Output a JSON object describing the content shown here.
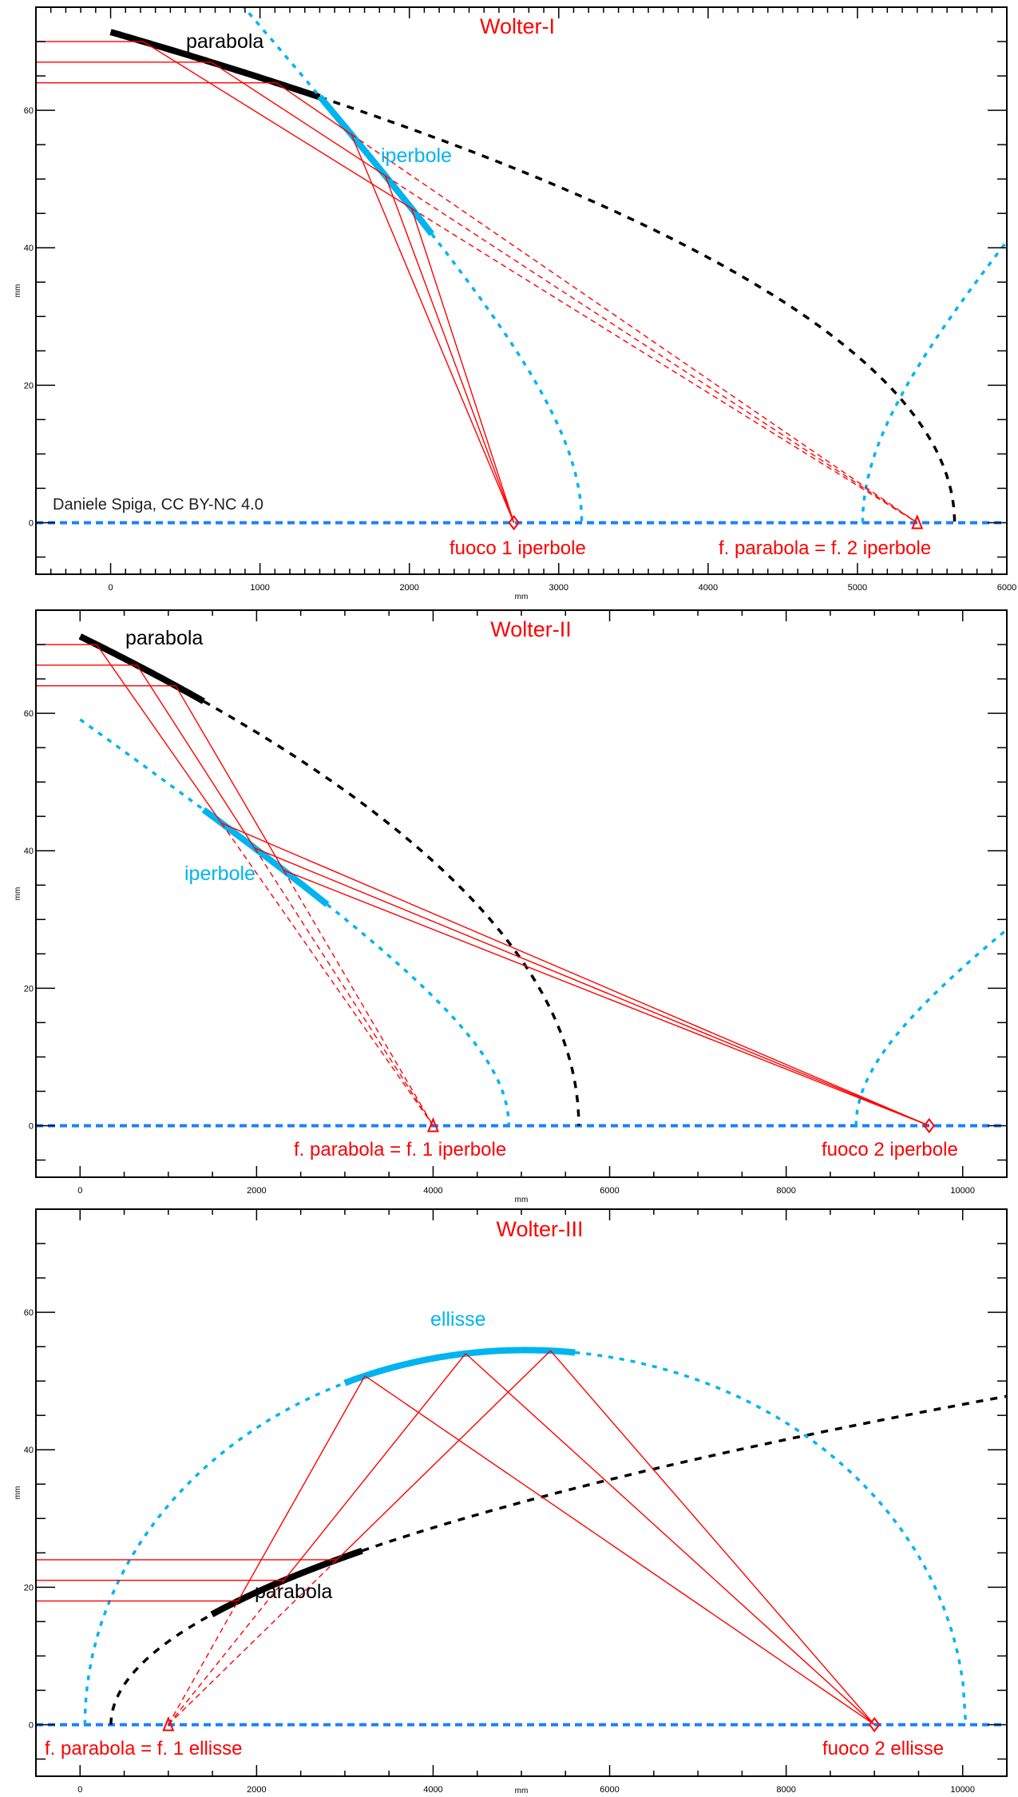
{
  "colors": {
    "ray": "#ff0000",
    "hyperbola_ellipse": "#00b4f0",
    "parabola": "#000000",
    "optical_axis": "#1a80ff",
    "label_red": "#ff0000"
  },
  "chart_data": [
    {
      "type": "diagram",
      "title": "Wolter-I",
      "xlabel": "mm",
      "ylabel": "mm",
      "xlim": [
        -500,
        6000
      ],
      "ylim": [
        -7.5,
        75
      ],
      "xticks": [
        0,
        1000,
        2000,
        3000,
        4000,
        5000,
        6000
      ],
      "xminor": 100,
      "yticks": [
        0,
        20,
        40,
        60
      ],
      "yminor": 5,
      "labels": {
        "parabola": "parabola",
        "iperbole": "iperbole",
        "focus_1": "fuoco 1 iperbole",
        "focus_2": "f. parabola = f. 2 iperbole",
        "credit": "Daniele Spiga, CC BY-NC 4.0"
      },
      "curves": [
        {
          "id": "parabola",
          "color": "parabola",
          "vertex": 5650,
          "dir": -1,
          "a": 0.902,
          "b": 0,
          "segments": [
            [
              0,
              1400,
              "thick"
            ],
            [
              1400,
              5650,
              "dashed"
            ]
          ]
        },
        {
          "id": "hyperbola-branch-1",
          "color": "hyperbola_ellipse",
          "vertex": 3154,
          "dir": -1,
          "a": 1.175,
          "b": 0.00058,
          "segments": [
            [
              -500,
              1400,
              "dashed"
            ],
            [
              1400,
              2150,
              "thick"
            ],
            [
              2150,
              3154,
              "dashed"
            ]
          ]
        },
        {
          "id": "hyperbola-branch-2",
          "color": "hyperbola_ellipse",
          "vertex": 5035,
          "dir": 1,
          "a": 1.175,
          "b": 0.00058,
          "segments": [
            [
              5035,
              6000,
              "dashed"
            ]
          ]
        }
      ],
      "rays": {
        "heights": [
          70,
          67,
          64
        ],
        "mode": "toward",
        "primary": 0,
        "secondary": 1,
        "focus_primary": 5400,
        "focus_final": 2700
      },
      "markers": [
        {
          "x": 2700,
          "shape": "diamond"
        },
        {
          "x": 5400,
          "shape": "triangle"
        }
      ]
    },
    {
      "type": "diagram",
      "title": "Wolter-II",
      "xlabel": "mm",
      "ylabel": "mm",
      "xlim": [
        -500,
        10500
      ],
      "ylim": [
        -7.5,
        75
      ],
      "xticks": [
        0,
        2000,
        4000,
        6000,
        8000,
        10000
      ],
      "xminor": 500,
      "yticks": [
        0,
        20,
        40,
        60
      ],
      "yminor": 5,
      "labels": {
        "parabola": "parabola",
        "iperbole": "iperbole",
        "focus_1": "f. parabola = f. 1 iperbole",
        "focus_2": "fuoco 2 iperbole"
      },
      "curves": [
        {
          "id": "parabola",
          "color": "parabola",
          "vertex": 5650,
          "dir": -1,
          "a": 0.897,
          "b": 0,
          "segments": [
            [
              0,
              1400,
              "thick"
            ],
            [
              1400,
              5650,
              "dashed"
            ]
          ]
        },
        {
          "id": "hyperbola-branch-1",
          "color": "hyperbola_ellipse",
          "vertex": 4857,
          "dir": -1,
          "a": 0.345,
          "b": 7.7e-05,
          "segments": [
            [
              0,
              1400,
              "dashed"
            ],
            [
              1400,
              2800,
              "thick"
            ],
            [
              2800,
              4857,
              "dashed"
            ]
          ]
        },
        {
          "id": "hyperbola-branch-2",
          "color": "hyperbola_ellipse",
          "vertex": 8792,
          "dir": 1,
          "a": 0.345,
          "b": 7.7e-05,
          "segments": [
            [
              8792,
              10500,
              "dashed"
            ]
          ]
        }
      ],
      "rays": {
        "heights": [
          70,
          67,
          64
        ],
        "mode": "toward",
        "primary": 0,
        "secondary": 1,
        "focus_primary": 4000,
        "focus_final": 9620
      },
      "markers": [
        {
          "x": 4000,
          "shape": "triangle"
        },
        {
          "x": 9620,
          "shape": "diamond"
        }
      ]
    },
    {
      "type": "diagram",
      "title": "Wolter-III",
      "xlabel": "mm",
      "ylabel": "mm",
      "xlim": [
        -500,
        10500
      ],
      "ylim": [
        -7.5,
        75
      ],
      "xticks": [
        0,
        2000,
        4000,
        6000,
        8000,
        10000
      ],
      "xminor": 500,
      "yticks": [
        0,
        20,
        40,
        60
      ],
      "yminor": 5,
      "labels": {
        "ellisse": "ellisse",
        "parabola": "parabola",
        "focus_1": "f. parabola = f. 1 ellisse",
        "focus_2": "fuoco 2 ellisse"
      },
      "curves": [
        {
          "id": "parabola",
          "color": "parabola",
          "vertex": 350,
          "dir": 1,
          "a": 0.225,
          "b": 0,
          "segments": [
            [
              350,
              1494,
              "dashed"
            ],
            [
              1494,
              3195,
              "thick"
            ],
            [
              3195,
              10500,
              "dashed"
            ]
          ]
        },
        {
          "id": "ellipse",
          "color": "hyperbola_ellipse",
          "vertex": 55,
          "dir": 1,
          "a": 1.1905,
          "b": -0.0001193,
          "segments": [
            [
              55,
              3000,
              "dashed"
            ],
            [
              3000,
              5610,
              "thick"
            ],
            [
              5610,
              10035,
              "dashed"
            ]
          ]
        }
      ],
      "rays": {
        "heights": [
          24,
          21,
          18
        ],
        "mode": "away",
        "primary": 0,
        "secondary": 1,
        "focus_primary": 1000,
        "focus_final": 9000
      },
      "markers": [
        {
          "x": 1000,
          "shape": "triangle"
        },
        {
          "x": 9000,
          "shape": "diamond"
        }
      ]
    }
  ]
}
